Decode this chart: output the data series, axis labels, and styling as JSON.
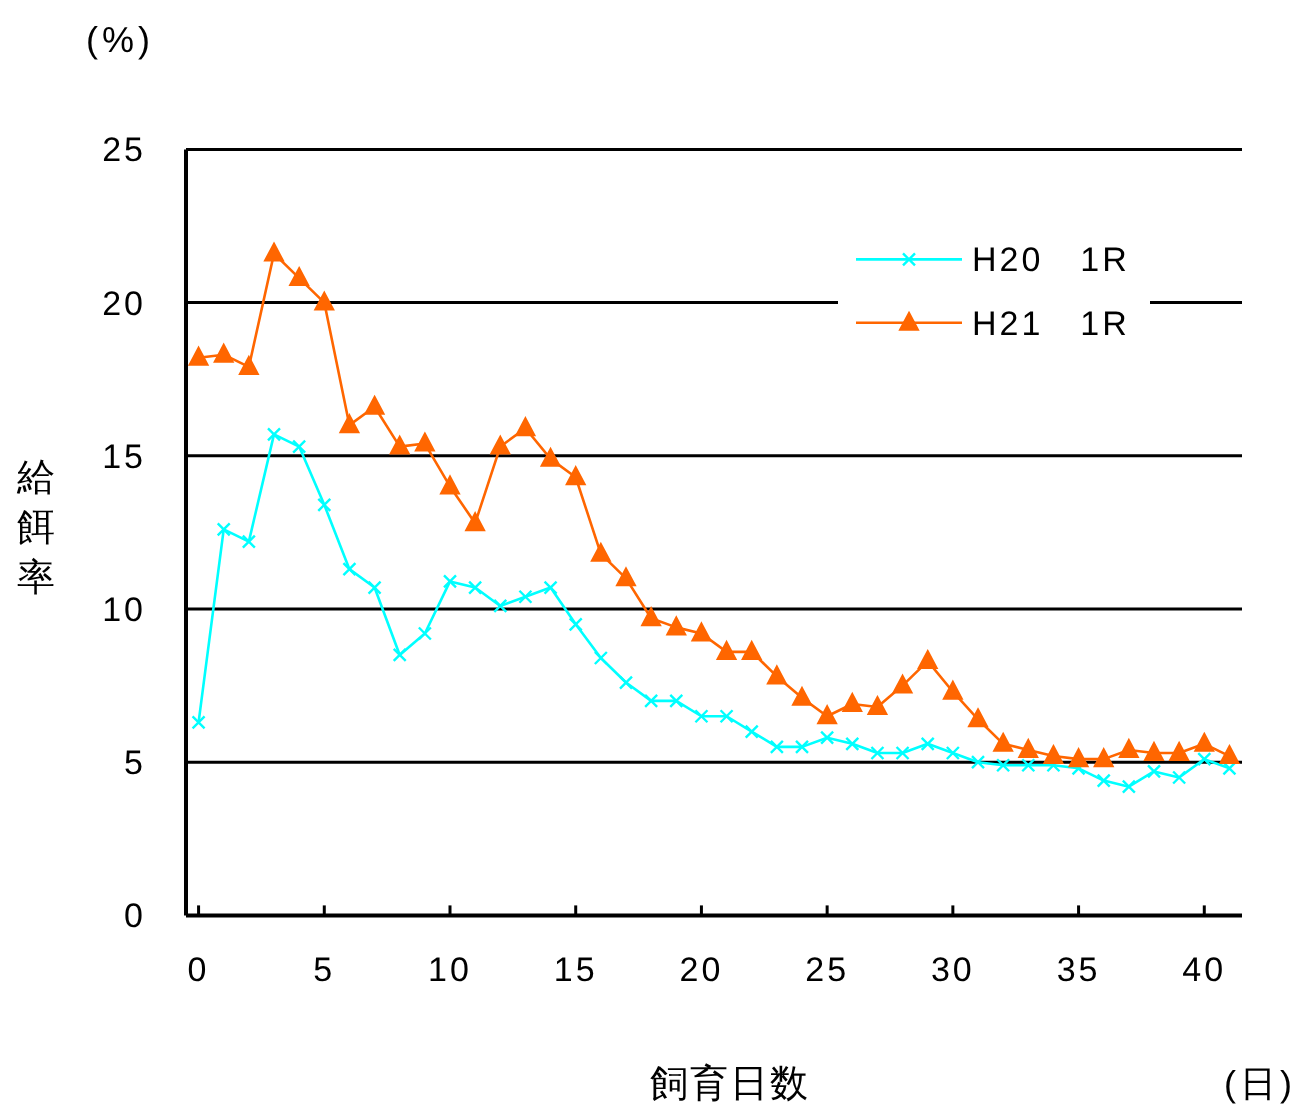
{
  "chart_data": {
    "type": "line",
    "xlabel": "飼育日数",
    "ylabel": "給餌率",
    "annotations": [
      "(%)",
      "(日)"
    ],
    "x": [
      0,
      1,
      2,
      3,
      4,
      5,
      6,
      7,
      8,
      9,
      10,
      11,
      12,
      13,
      14,
      15,
      16,
      17,
      18,
      19,
      20,
      21,
      22,
      23,
      24,
      25,
      26,
      27,
      28,
      29,
      30,
      31,
      32,
      33,
      34,
      35,
      36,
      37,
      38,
      39,
      40,
      41
    ],
    "series": [
      {
        "name": "H20　1R",
        "color": "#00ffff",
        "marker": "cross",
        "values": [
          6.3,
          12.6,
          12.2,
          15.7,
          15.3,
          13.4,
          11.3,
          10.7,
          8.5,
          9.2,
          10.9,
          10.7,
          10.1,
          10.4,
          10.7,
          9.5,
          8.4,
          7.6,
          7.0,
          7.0,
          6.5,
          6.5,
          6.0,
          5.5,
          5.5,
          5.8,
          5.6,
          5.3,
          5.3,
          5.6,
          5.3,
          5.0,
          4.9,
          4.9,
          4.9,
          4.8,
          4.4,
          4.2,
          4.7,
          4.5,
          5.1,
          4.8
        ]
      },
      {
        "name": "H21　1R",
        "color": "#ff6600",
        "marker": "triangle",
        "values": [
          18.2,
          18.3,
          17.9,
          21.6,
          20.8,
          20.0,
          16.0,
          16.6,
          15.3,
          15.4,
          14.0,
          12.8,
          15.3,
          15.9,
          14.9,
          14.3,
          11.8,
          11.0,
          9.7,
          9.4,
          9.2,
          8.6,
          8.6,
          7.8,
          7.1,
          6.5,
          6.9,
          6.8,
          7.5,
          8.3,
          7.3,
          6.4,
          5.6,
          5.4,
          5.2,
          5.1,
          5.1,
          5.4,
          5.3,
          5.3,
          5.6,
          5.2
        ]
      }
    ],
    "xlim": [
      -0.5,
      41.5
    ],
    "xticks": [
      0,
      5,
      10,
      15,
      20,
      25,
      30,
      35,
      40
    ],
    "ylim": [
      0,
      25
    ],
    "yticks": [
      0,
      5,
      10,
      15,
      20,
      25
    ],
    "grid": "y",
    "legend": "top right",
    "line_style": "solid"
  }
}
